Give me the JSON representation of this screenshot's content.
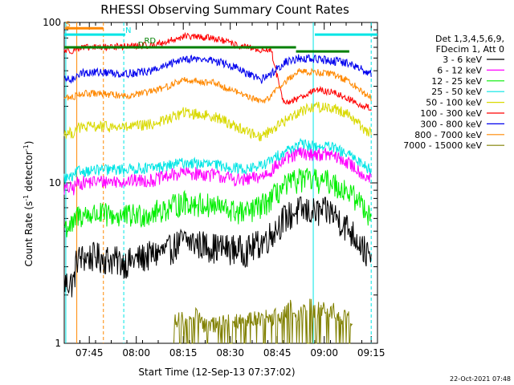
{
  "chart_data": {
    "type": "line",
    "title": "RHESSI Observing Summary Count Rates",
    "xlabel": "Start Time (12-Sep-13 07:37:02)",
    "ylabel_main": "Count Rate (s",
    "ylabel_sup1": "-1",
    "ylabel_mid": " detector",
    "ylabel_sup2": "-1",
    "ylabel_end": ")",
    "yscale": "log",
    "ylim": [
      1,
      100
    ],
    "y_ticks": [
      {
        "value": 1,
        "label": "1"
      },
      {
        "value": 10,
        "label": "10"
      },
      {
        "value": 100,
        "label": "100"
      }
    ],
    "x_range_minutes": [
      0,
      100
    ],
    "x_ticks": [
      {
        "t": 8,
        "label": "07:45"
      },
      {
        "t": 23,
        "label": "08:00"
      },
      {
        "t": 38,
        "label": "08:15"
      },
      {
        "t": 53,
        "label": "08:30"
      },
      {
        "t": 68,
        "label": "08:45"
      },
      {
        "t": 83,
        "label": "09:00"
      },
      {
        "t": 98,
        "label": "09:15"
      }
    ],
    "legend": {
      "position": "right",
      "header1": "Det 1,3,4,5,6,9,",
      "header2": "FDecim 1, Att 0"
    },
    "series": [
      {
        "name": "3 - 6 keV",
        "color": "#000000",
        "x": [
          0,
          3,
          4,
          10,
          20,
          28,
          33,
          38,
          48,
          55,
          58,
          63,
          66,
          70,
          75,
          80,
          85,
          90,
          94,
          96,
          98
        ],
        "y": [
          2.4,
          2.4,
          3.4,
          3.5,
          3.2,
          3.6,
          3.8,
          4.4,
          4.0,
          3.9,
          3.8,
          4.3,
          4.8,
          6.0,
          6.8,
          6.6,
          6.7,
          5.4,
          4.4,
          3.8,
          3.3
        ]
      },
      {
        "name": "6 - 12 keV",
        "color": "#ff00ff",
        "x": [
          0,
          3,
          4,
          10,
          20,
          28,
          33,
          38,
          48,
          55,
          58,
          63,
          66,
          70,
          75,
          80,
          85,
          90,
          94,
          96,
          98
        ],
        "y": [
          9.2,
          9.2,
          10.0,
          10.2,
          10.3,
          10.4,
          11.0,
          11.6,
          11.2,
          10.5,
          10.4,
          11.0,
          12.0,
          13.8,
          15.4,
          15.2,
          15.0,
          13.5,
          12.0,
          11.0,
          10.6
        ]
      },
      {
        "name": "12 - 25 keV",
        "color": "#00ee00",
        "x": [
          0,
          3,
          4,
          10,
          20,
          28,
          33,
          38,
          48,
          55,
          58,
          63,
          66,
          70,
          75,
          80,
          85,
          90,
          94,
          96,
          98
        ],
        "y": [
          5.4,
          5.4,
          6.3,
          6.4,
          6.2,
          6.5,
          7.0,
          7.6,
          7.2,
          6.6,
          6.5,
          7.2,
          8.0,
          9.4,
          10.6,
          10.4,
          10.2,
          9.0,
          7.8,
          7.0,
          6.2
        ]
      },
      {
        "name": "25 - 50 keV",
        "color": "#00e5e5",
        "x": [
          0,
          3,
          4,
          10,
          20,
          28,
          33,
          38,
          48,
          55,
          58,
          63,
          66,
          70,
          75,
          80,
          85,
          90,
          94,
          96,
          98
        ],
        "y": [
          10.8,
          10.8,
          11.8,
          12.0,
          12.2,
          12.4,
          12.8,
          13.4,
          13.0,
          12.4,
          12.2,
          12.8,
          13.8,
          15.6,
          17.4,
          17.0,
          16.8,
          15.2,
          13.8,
          12.8,
          12.0
        ]
      },
      {
        "name": "50 - 100 keV",
        "color": "#d9d900",
        "x": [
          0,
          3,
          4,
          10,
          20,
          28,
          33,
          38,
          48,
          55,
          58,
          63,
          66,
          70,
          75,
          80,
          85,
          90,
          94,
          96,
          98
        ],
        "y": [
          20.5,
          20.5,
          22.0,
          22.5,
          22.2,
          23.2,
          25.0,
          27.5,
          26.0,
          22.5,
          21.0,
          19.5,
          21.5,
          24.0,
          28.0,
          30.0,
          29.5,
          27.5,
          23.5,
          21.5,
          20.5
        ]
      },
      {
        "name": "100 - 300 keV",
        "color": "#ff0000",
        "x": [
          0,
          3,
          4,
          10,
          20,
          28,
          33,
          38,
          48,
          55,
          58,
          63,
          66,
          70,
          75,
          80,
          85,
          90,
          94,
          96,
          98
        ],
        "y": [
          67,
          67,
          69,
          70,
          71,
          72,
          76,
          82,
          80,
          72,
          70,
          67,
          68,
          31,
          34,
          38,
          37,
          34,
          31,
          30,
          29
        ]
      },
      {
        "name": "300 - 800 keV",
        "color": "#0000ee",
        "x": [
          0,
          3,
          4,
          10,
          20,
          28,
          33,
          38,
          48,
          55,
          58,
          63,
          66,
          70,
          75,
          80,
          85,
          90,
          94,
          96,
          98
        ],
        "y": [
          44,
          44,
          48,
          49,
          48,
          50,
          54,
          60,
          58,
          52,
          48,
          44,
          48,
          56,
          60,
          59,
          58,
          56,
          52,
          50,
          48
        ]
      },
      {
        "name": "800 - 7000 keV",
        "color": "#ff8800",
        "x": [
          0,
          3,
          4,
          10,
          20,
          28,
          33,
          38,
          48,
          55,
          58,
          63,
          66,
          70,
          75,
          80,
          85,
          90,
          94,
          96,
          98
        ],
        "y": [
          34,
          34,
          36,
          36,
          35,
          37,
          40,
          44,
          42,
          37,
          35,
          32,
          35,
          42,
          50,
          49,
          48,
          44,
          39,
          36,
          34
        ]
      },
      {
        "name": "7000 - 15000 keV",
        "color": "#808000",
        "x": [
          35,
          37,
          39,
          41,
          43,
          45,
          70,
          72,
          74,
          76,
          78,
          80,
          82,
          84,
          86,
          88,
          90,
          92
        ],
        "y": [
          1.35,
          1.5,
          1.28,
          1.6,
          1.4,
          1.3,
          1.5,
          1.7,
          1.45,
          1.6,
          1.8,
          1.55,
          1.7,
          1.5,
          1.65,
          1.4,
          1.6,
          1.35
        ]
      }
    ],
    "annotations": [
      {
        "text": "S",
        "t": 0.4,
        "y": 94,
        "color": "#ff8800"
      },
      {
        "text": "N",
        "t": 19.5,
        "y": 86,
        "color": "#00e5e5"
      },
      {
        "text": "D",
        "t": 23.5,
        "y": 70,
        "color": "#008000"
      },
      {
        "text": "RD",
        "t": 25.5,
        "y": 74,
        "color": "#008000"
      }
    ],
    "flag_bars": [
      {
        "label": "SAA",
        "color": "#ff8800",
        "t0": 0.3,
        "t1": 12.5,
        "y": 92
      },
      {
        "label": "night",
        "color": "#00e5e5",
        "t0": 0,
        "t1": 19.5,
        "y": 84
      },
      {
        "label": "night",
        "color": "#00e5e5",
        "t0": 80,
        "t1": 100,
        "y": 84
      },
      {
        "label": "decimation",
        "color": "#008000",
        "t0": 0,
        "t1": 74,
        "y": 70
      },
      {
        "label": "decimation",
        "color": "#008000",
        "t0": 74,
        "t1": 91,
        "y": 66
      }
    ],
    "vertical_markers": [
      {
        "t": 4,
        "color": "#ff8800",
        "style": "solid"
      },
      {
        "t": 12.5,
        "color": "#ff8800",
        "style": "dashed"
      },
      {
        "t": 19,
        "color": "#00e5e5",
        "style": "dashed"
      },
      {
        "t": 79.5,
        "color": "#00e5e5",
        "style": "solid"
      },
      {
        "t": 98,
        "color": "#00e5e5",
        "style": "dashed"
      },
      {
        "t": 0.5,
        "color": "#00e5e5",
        "style": "solid"
      }
    ]
  },
  "footer": {
    "date_stamp": "22-Oct-2021 07:48"
  }
}
